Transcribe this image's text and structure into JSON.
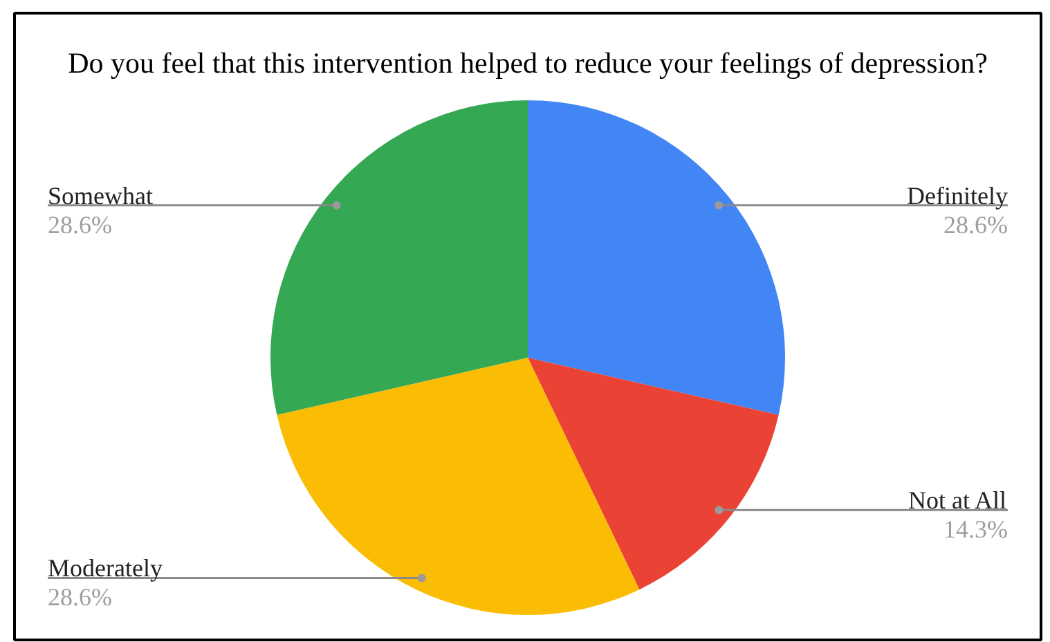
{
  "chart_data": {
    "type": "pie",
    "title": "Do you feel that this intervention helped to reduce your feelings of depression?",
    "categories": [
      "Definitely",
      "Not at All",
      "Moderately",
      "Somewhat"
    ],
    "values": [
      28.6,
      14.3,
      28.6,
      28.6
    ],
    "colors": [
      "#4285f4",
      "#ea4335",
      "#fbbc04",
      "#34a853"
    ],
    "value_labels": [
      "28.6%",
      "14.3%",
      "28.6%",
      "28.6%"
    ]
  }
}
